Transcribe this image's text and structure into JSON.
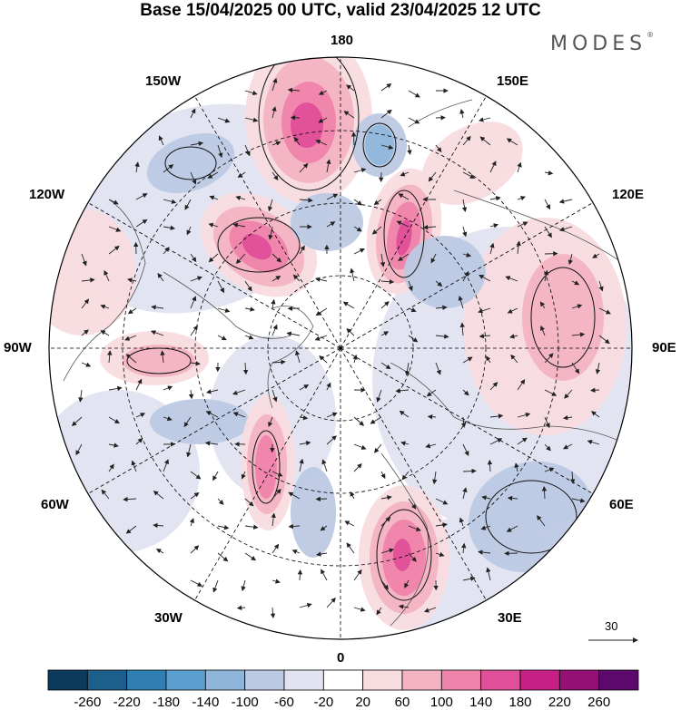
{
  "title": "Base 15/04/2025 00 UTC, valid 23/04/2025 12 UTC",
  "brand": "MODES",
  "brand_mark": "®",
  "longitude_labels": {
    "lon_180": "180",
    "lon_150w": "150W",
    "lon_150e": "150E",
    "lon_120w": "120W",
    "lon_120e": "120E",
    "lon_90w": "90W",
    "lon_90e": "90E",
    "lon_60w": "60W",
    "lon_60e": "60E",
    "lon_30w": "30W",
    "lon_30e": "30E",
    "lon_0": "0"
  },
  "reference_vector": "30",
  "colorbar": {
    "ticks": [
      "-260",
      "-220",
      "-180",
      "-140",
      "-100",
      "-60",
      "-20",
      "20",
      "60",
      "100",
      "140",
      "180",
      "220",
      "260"
    ],
    "colors": [
      "#0b3a5c",
      "#1d5f8c",
      "#2f7fb5",
      "#5a9fcf",
      "#8fb6da",
      "#bcc9e3",
      "#e2e3f0",
      "#ffffff",
      "#f8dcdf",
      "#f3b3c2",
      "#ef84ab",
      "#e04f9a",
      "#c61f86",
      "#941075",
      "#5b0a6b"
    ]
  },
  "palette": {
    "neg_light": "#e2e3f0",
    "neg_mid": "#bcc9e3",
    "neg_strong": "#8fb6da",
    "neg_deep": "#5a9fcf",
    "pos_light": "#f8dcdf",
    "pos_mid": "#f3b3c2",
    "pos_strong": "#ef84ab",
    "pos_deep": "#e04f9a",
    "coast": "#555555",
    "grid": "#000000"
  },
  "map": {
    "projection": "north-polar-stereographic",
    "fields": [
      "shaded anomaly",
      "wind vectors",
      "streamlines"
    ]
  }
}
